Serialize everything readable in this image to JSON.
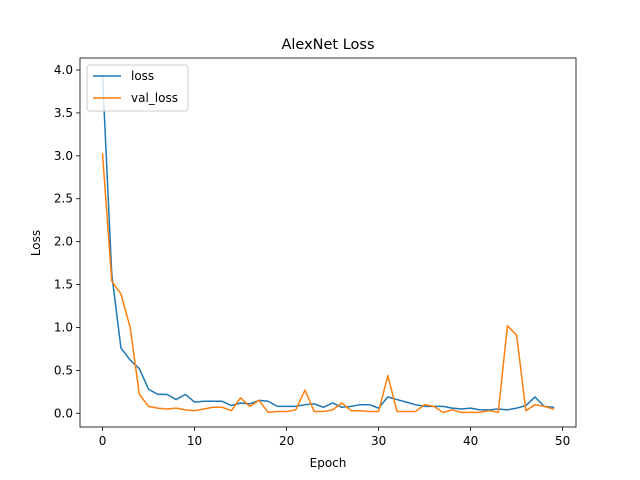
{
  "chart_data": {
    "type": "line",
    "title": "AlexNet Loss",
    "xlabel": "Epoch",
    "ylabel": "Loss",
    "xlim": [
      -2.45,
      51.45
    ],
    "ylim": [
      -0.16,
      4.14
    ],
    "xticks": [
      0,
      10,
      20,
      30,
      40,
      50
    ],
    "yticks": [
      0.0,
      0.5,
      1.0,
      1.5,
      2.0,
      2.5,
      3.0,
      3.5,
      4.0
    ],
    "grid": false,
    "legend_position": "top-left",
    "x": [
      0,
      1,
      2,
      3,
      4,
      5,
      6,
      7,
      8,
      9,
      10,
      11,
      12,
      13,
      14,
      15,
      16,
      17,
      18,
      19,
      20,
      21,
      22,
      23,
      24,
      25,
      26,
      27,
      28,
      29,
      30,
      31,
      32,
      33,
      34,
      35,
      36,
      37,
      38,
      39,
      40,
      41,
      42,
      43,
      44,
      45,
      46,
      47,
      48,
      49
    ],
    "series": [
      {
        "name": "loss",
        "color": "#1f77b4",
        "values": [
          3.93,
          1.62,
          0.76,
          0.62,
          0.52,
          0.28,
          0.22,
          0.22,
          0.16,
          0.22,
          0.13,
          0.14,
          0.14,
          0.14,
          0.09,
          0.12,
          0.11,
          0.15,
          0.14,
          0.08,
          0.08,
          0.08,
          0.1,
          0.11,
          0.07,
          0.12,
          0.07,
          0.08,
          0.1,
          0.1,
          0.06,
          0.19,
          0.16,
          0.13,
          0.1,
          0.08,
          0.08,
          0.08,
          0.06,
          0.05,
          0.06,
          0.04,
          0.04,
          0.05,
          0.04,
          0.06,
          0.09,
          0.19,
          0.08,
          0.07
        ]
      },
      {
        "name": "val_loss",
        "color": "#ff7f0e",
        "values": [
          3.02,
          1.54,
          1.39,
          1.0,
          0.22,
          0.08,
          0.06,
          0.05,
          0.06,
          0.04,
          0.03,
          0.05,
          0.07,
          0.07,
          0.03,
          0.18,
          0.08,
          0.15,
          0.01,
          0.02,
          0.02,
          0.04,
          0.27,
          0.02,
          0.02,
          0.04,
          0.12,
          0.03,
          0.03,
          0.02,
          0.02,
          0.44,
          0.02,
          0.02,
          0.02,
          0.1,
          0.08,
          0.01,
          0.04,
          0.01,
          0.01,
          0.01,
          0.03,
          0.01,
          1.02,
          0.91,
          0.03,
          0.1,
          0.08,
          0.05
        ]
      }
    ]
  }
}
